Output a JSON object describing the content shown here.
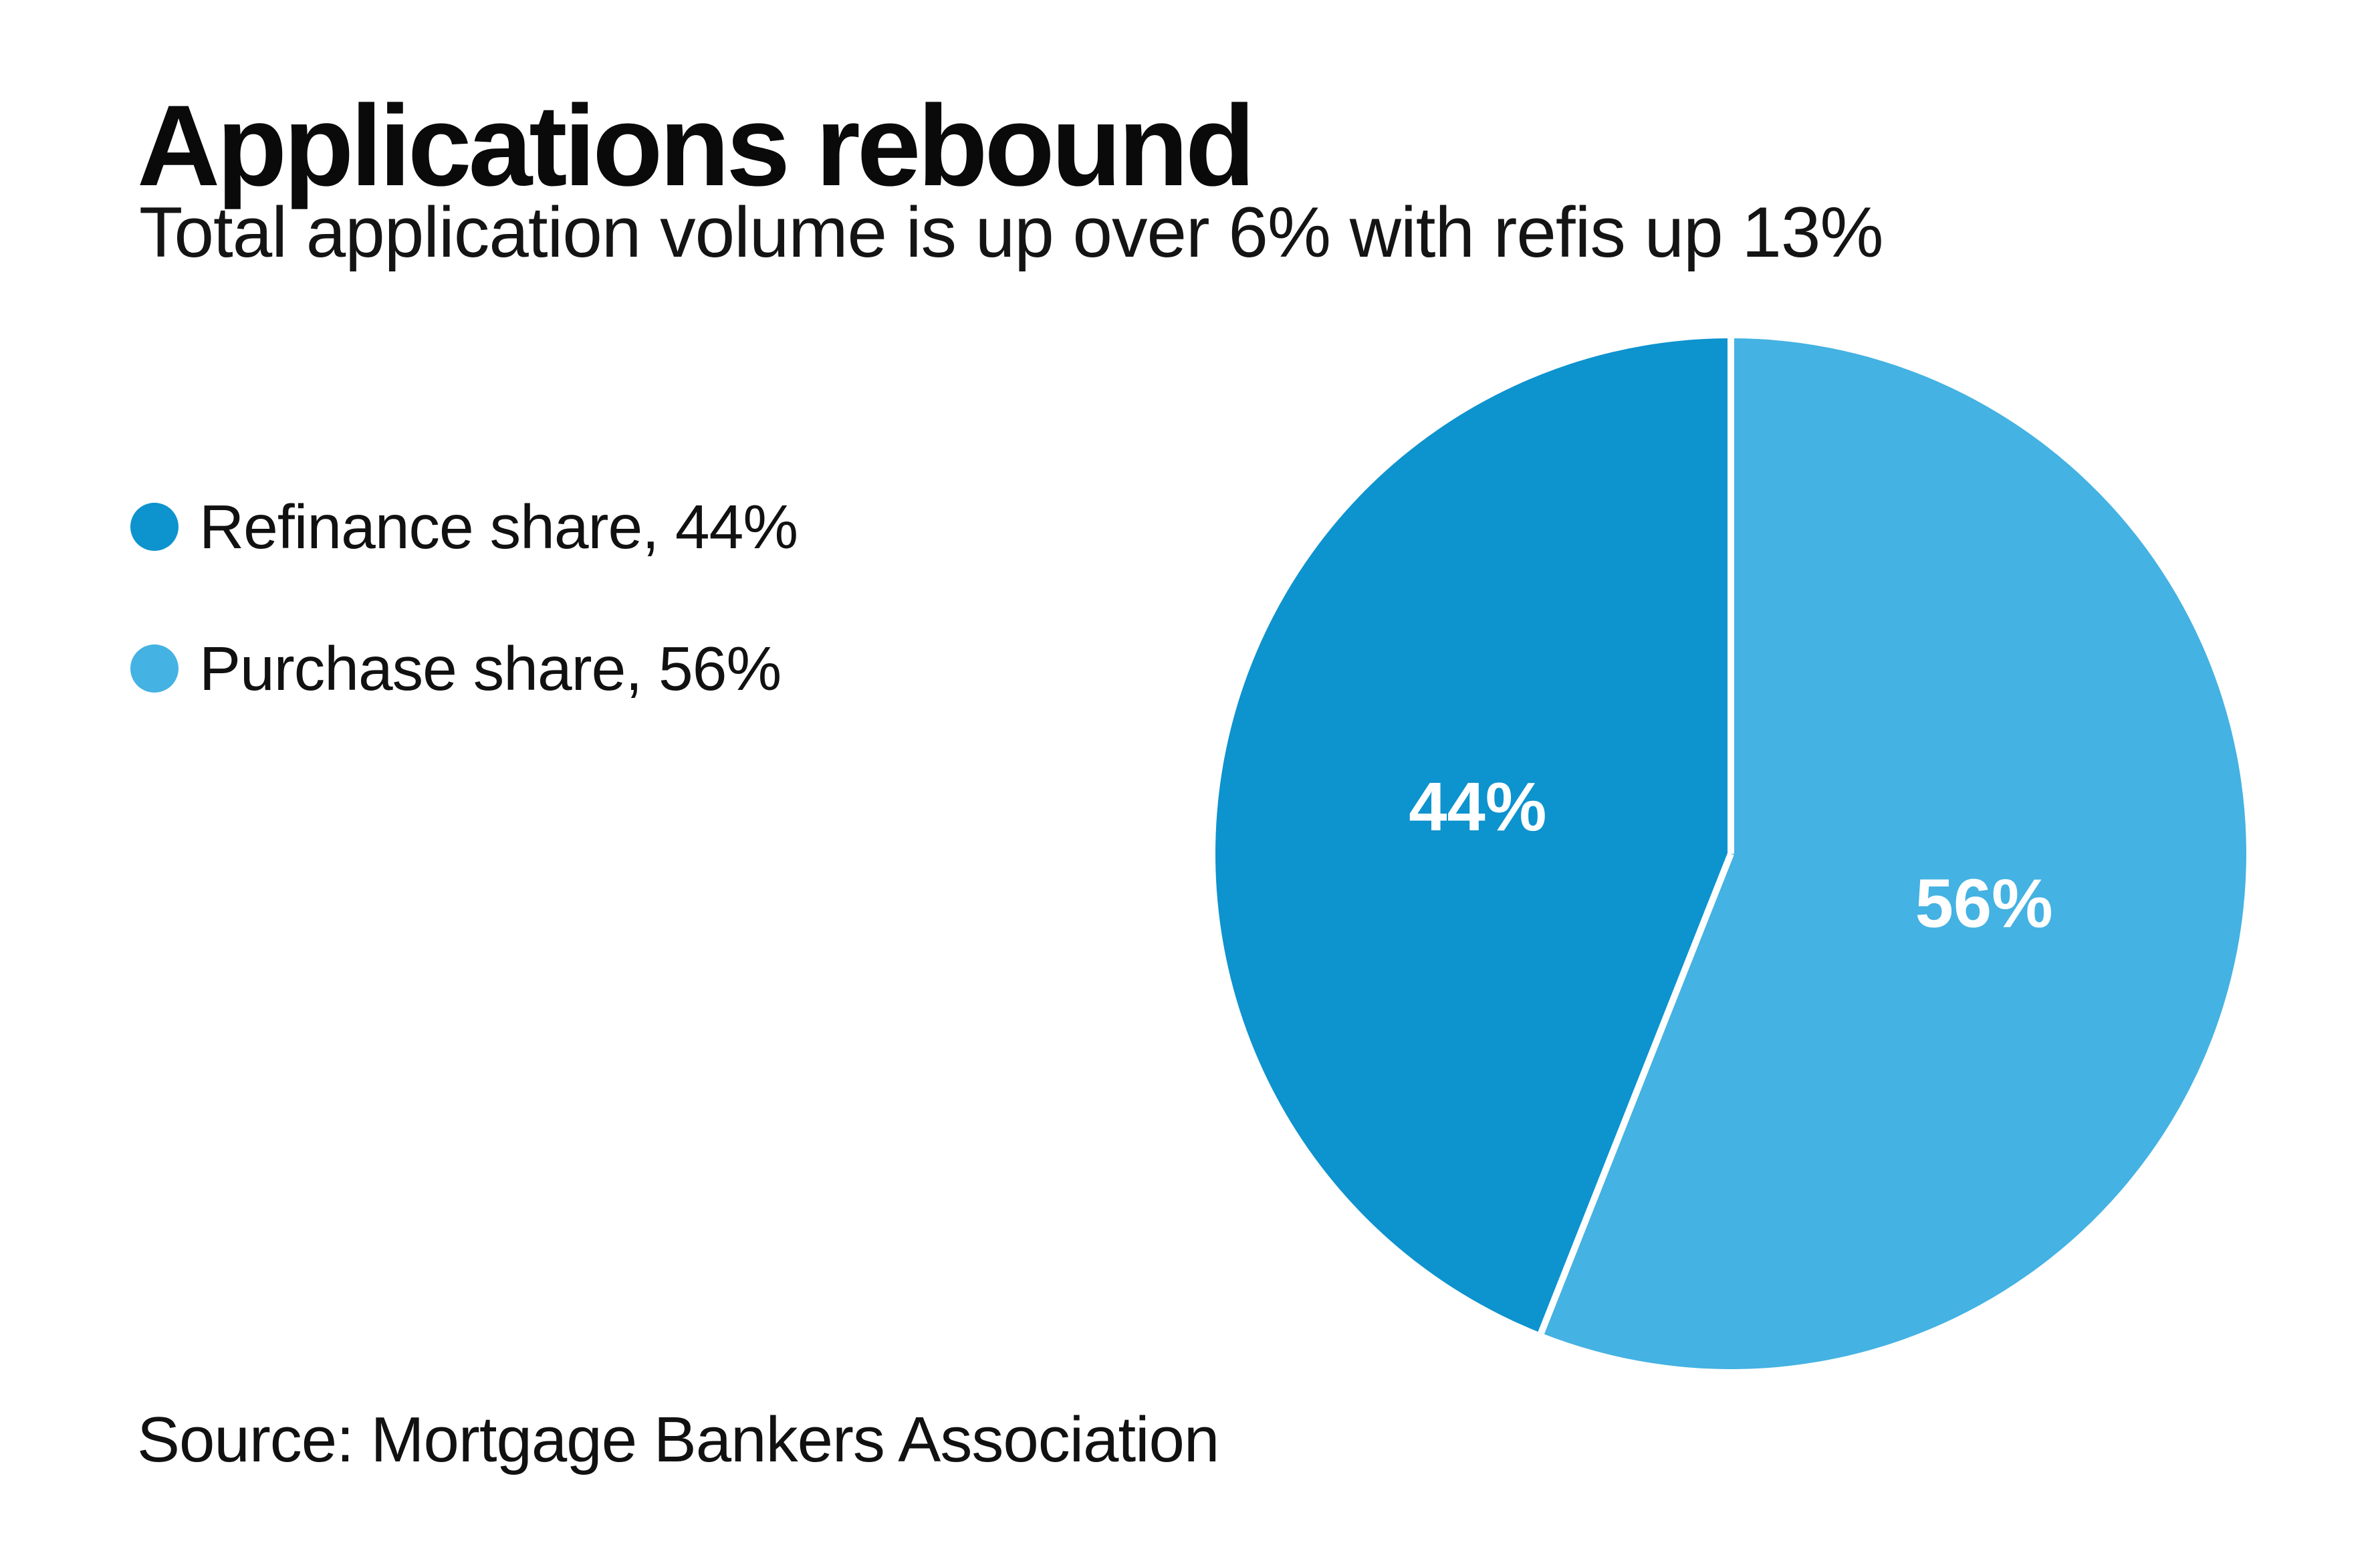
{
  "header": {
    "title": "Applications rebound",
    "subtitle": "Total application volume is up over 6% with refis up 13%"
  },
  "legend": {
    "items": [
      {
        "name": "Refinance share",
        "label": "Refinance share, 44%",
        "color": "#0d93ce"
      },
      {
        "name": "Purchase share",
        "label": "Purchase share, 56%",
        "color": "#44b2e2"
      }
    ]
  },
  "source": {
    "text": "Source: Mortgage Bankers Association"
  },
  "chart_data": {
    "type": "pie",
    "title": "Applications rebound",
    "subtitle": "Total application volume is up over 6% with refis up 13%",
    "slices": [
      {
        "name": "Purchase share",
        "value": 56,
        "label": "56%",
        "color": "#44b2e2"
      },
      {
        "name": "Refinance share",
        "value": 44,
        "label": "44%",
        "color": "#0d93ce"
      }
    ],
    "start_angle_deg": 0,
    "direction": "clockwise",
    "divider_color": "#ffffff",
    "divider_width": 10,
    "slice_label_color": "#ffffff",
    "slice_label_radius_ratio": 0.5,
    "legend_position": "left",
    "source": "Source: Mortgage Bankers Association"
  }
}
